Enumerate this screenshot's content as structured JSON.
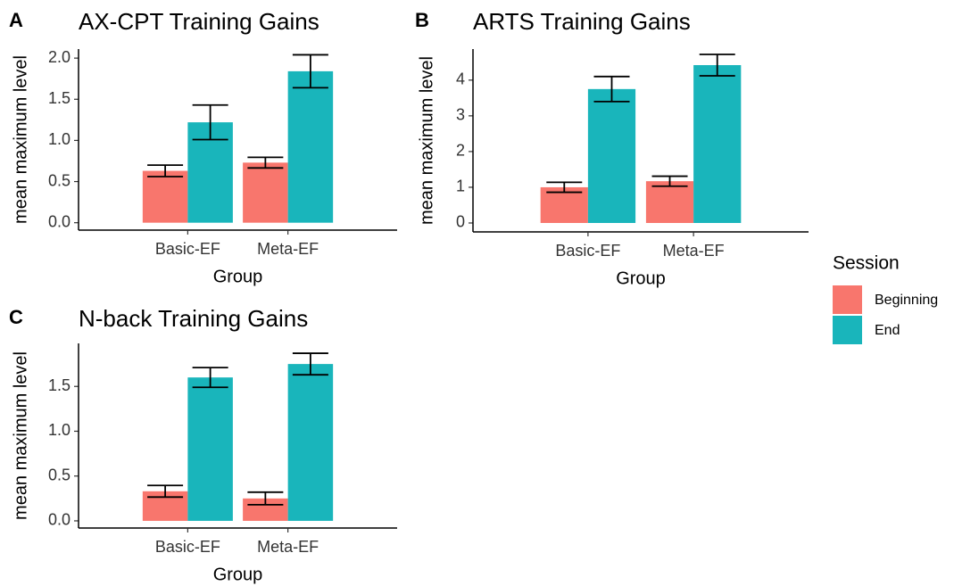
{
  "chart_data": [
    {
      "type": "bar",
      "panel": "A",
      "title": "AX-CPT Training Gains",
      "x_label": "Group",
      "y_label": "mean maximum level",
      "legend_title": "Session",
      "categories": [
        "Basic-EF",
        "Meta-EF"
      ],
      "series": [
        {
          "name": "Beginning",
          "color": "#f8766d",
          "values": [
            0.63,
            0.73
          ],
          "errors": [
            0.07,
            0.065
          ]
        },
        {
          "name": "End",
          "color": "#19b5bb",
          "values": [
            1.22,
            1.84
          ],
          "errors": [
            0.21,
            0.2
          ]
        }
      ],
      "ylim": [
        -0.09,
        2.11
      ],
      "yticks": [
        {
          "value": 0,
          "label": "0.0"
        },
        0.5,
        {
          "value": 1,
          "label": "1.0"
        },
        1.5,
        {
          "value": 2,
          "label": "2.0"
        }
      ]
    },
    {
      "type": "bar",
      "panel": "B",
      "title": "ARTS Training Gains",
      "x_label": "Group",
      "y_label": "mean maximum level",
      "categories": [
        "Basic-EF",
        "Meta-EF"
      ],
      "series": [
        {
          "color": "#f8766d",
          "values": [
            1.0,
            1.17
          ],
          "errors": [
            0.14,
            0.14
          ]
        },
        {
          "color": "#19b5bb",
          "values": [
            3.75,
            4.42
          ],
          "errors": [
            0.35,
            0.3
          ]
        }
      ],
      "ylim": [
        -0.25,
        4.87
      ],
      "yticks": [
        0,
        1,
        2,
        3,
        4
      ]
    },
    {
      "type": "bar",
      "panel": "C",
      "title": "N-back Training Gains",
      "x_label": "Group",
      "y_label": "mean maximum level",
      "categories": [
        "Basic-EF",
        "Meta-EF"
      ],
      "series": [
        {
          "color": "#f8766d",
          "values": [
            0.33,
            0.25
          ],
          "errors": [
            0.065,
            0.07
          ]
        },
        {
          "color": "#19b5bb",
          "values": [
            1.6,
            1.75
          ],
          "errors": [
            0.11,
            0.12
          ]
        }
      ],
      "ylim": [
        -0.08,
        1.98
      ],
      "yticks": [
        {
          "value": 0,
          "label": "0.0"
        },
        0.5,
        {
          "value": 1,
          "label": "1.0"
        },
        1.5
      ]
    }
  ]
}
